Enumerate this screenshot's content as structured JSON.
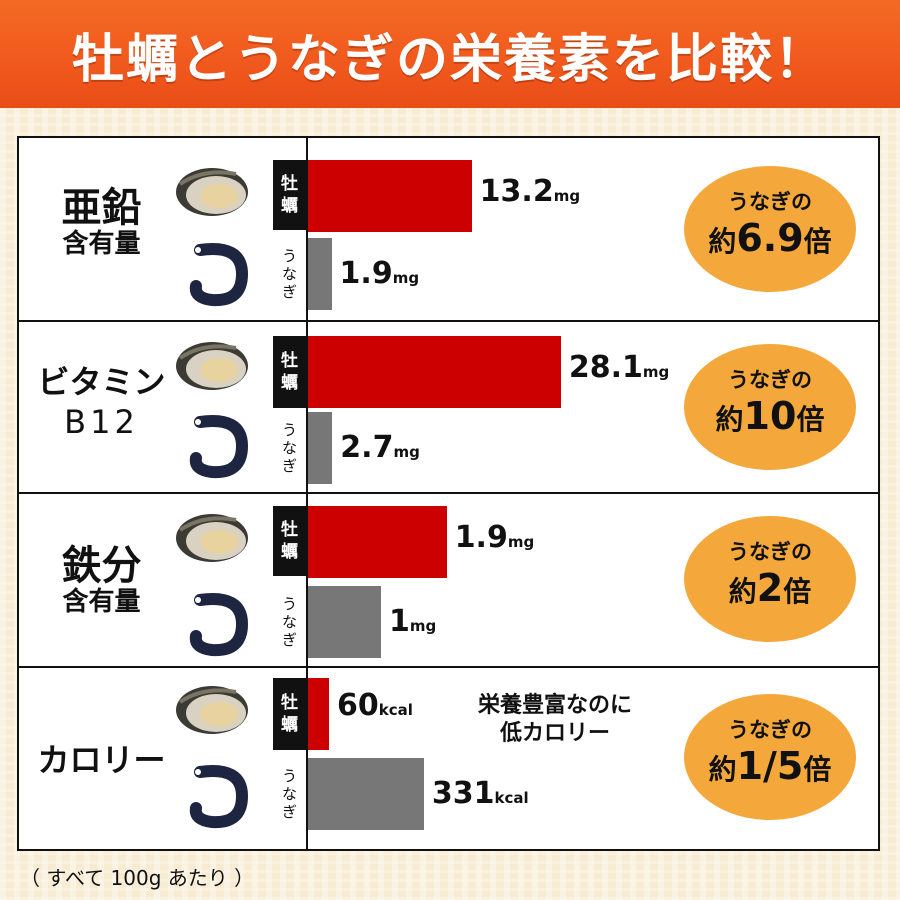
{
  "title": "牡蠣とうなぎの栄養素を比較！",
  "footnote": "（ すべて 100g あたり ）",
  "note": {
    "line1": "栄養豊富なのに",
    "line2": "低カロリー"
  },
  "labels": {
    "oyster": [
      "牡",
      "蠣"
    ],
    "eel": [
      "う",
      "な",
      "ぎ"
    ]
  },
  "colors": {
    "oyster_bar": "#cc0000",
    "eel_bar": "#777777",
    "badge": "#f4a83c",
    "header": "#f15a1e"
  },
  "icons": {
    "oyster": "oyster-icon",
    "eel": "eel-icon"
  },
  "chart_data": {
    "type": "bar",
    "series": [
      {
        "name": "牡蠣",
        "values": [
          13.2,
          28.1,
          1.9,
          60
        ]
      },
      {
        "name": "うなぎ",
        "values": [
          1.9,
          2.7,
          1,
          331
        ]
      }
    ],
    "rows": [
      {
        "label_main": "亜鉛",
        "label_sub": "含有量",
        "oyster_value": 13.2,
        "eel_value": 1.9,
        "oyster_text": "13.2",
        "eel_text": "1.9",
        "unit": "mg",
        "badge_top": "うなぎの",
        "badge_pre": "約",
        "badge_mult": "6.9",
        "badge_post": "倍"
      },
      {
        "label_main": "ビタミン",
        "label_sub": "B12",
        "oyster_value": 28.1,
        "eel_value": 2.7,
        "oyster_text": "28.1",
        "eel_text": "2.7",
        "unit": "mg",
        "badge_top": "うなぎの",
        "badge_pre": "約",
        "badge_mult": "10",
        "badge_post": "倍"
      },
      {
        "label_main": "鉄分",
        "label_sub": "含有量",
        "oyster_value": 1.9,
        "eel_value": 1,
        "oyster_text": "1.9",
        "eel_text": "1",
        "unit": "mg",
        "badge_top": "うなぎの",
        "badge_pre": "約",
        "badge_mult": "2",
        "badge_post": "倍"
      },
      {
        "label_main": "カロリー",
        "label_sub": "",
        "oyster_value": 60,
        "eel_value": 331,
        "oyster_text": "60",
        "eel_text": "331",
        "unit": "kcal",
        "badge_top": "うなぎの",
        "badge_pre": "約",
        "badge_mult": "1/5",
        "badge_post": "倍"
      }
    ]
  }
}
